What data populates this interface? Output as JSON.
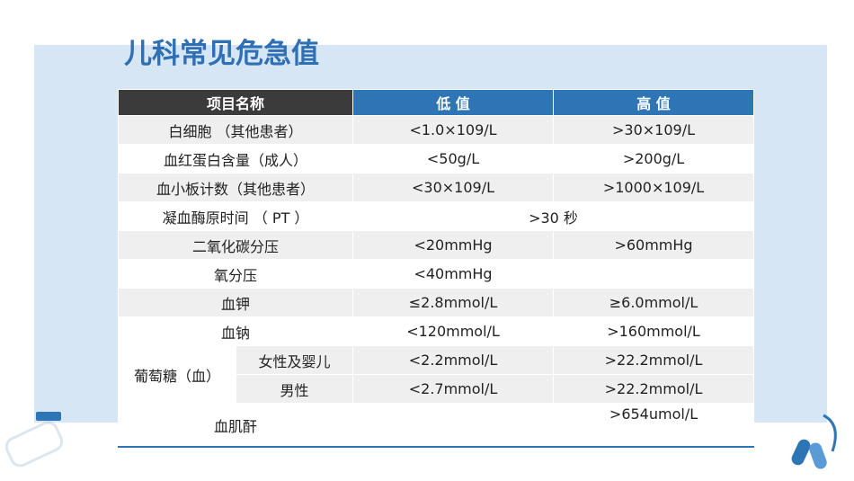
{
  "title": "儿科常见危急值",
  "table": {
    "header": [
      "项目名称",
      "低 值",
      "高 值"
    ],
    "rows": [
      {
        "item": "白细胞 （其他患者）",
        "low": "<1.0×109/L",
        "high": ">30×109/L"
      },
      {
        "item": "血红蛋白含量（成人）",
        "low": "<50g/L",
        "high": ">200g/L"
      },
      {
        "item": "血小板计数（其他患者）",
        "low": "<30×109/L",
        "high": ">1000×109/L"
      },
      {
        "item": "凝血酶原时间 （ PT ）",
        "value": ">30 秒"
      },
      {
        "item": "二氧化碳分压",
        "low": "<20mmHg",
        "high": ">60mmHg"
      },
      {
        "item": "氧分压",
        "low": "<40mmHg"
      },
      {
        "item": "血钾",
        "low": "≤2.8mmol/L",
        "high": "≥6.0mmol/L"
      },
      {
        "item": "血钠",
        "low": "<120mmol/L",
        "high": ">160mmol/L"
      },
      {
        "group": "葡萄糖（血）",
        "item": "女性及婴儿",
        "low": "<2.2mmol/L",
        "high": ">22.2mmol/L"
      },
      {
        "item": "男性",
        "low": "<2.7mmol/L",
        "high": ">22.2mmol/L"
      },
      {
        "item": "血肌酐",
        "high": ">654umol/L"
      }
    ]
  }
}
